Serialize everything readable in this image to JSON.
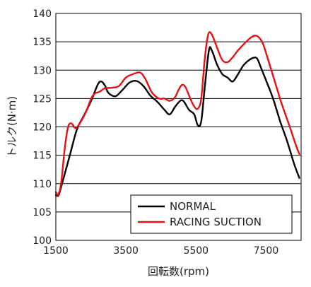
{
  "chart_data": {
    "type": "line",
    "title": "",
    "xlabel": "回転数(rpm)",
    "ylabel": "トルク(N·m)",
    "xlim": [
      1500,
      8500
    ],
    "ylim": [
      100,
      140
    ],
    "x_ticks": [
      1500,
      3500,
      5500,
      7500
    ],
    "y_ticks": [
      100,
      105,
      110,
      115,
      120,
      125,
      130,
      135,
      140
    ],
    "grid": "horizontal",
    "legend_position": "lower-right",
    "series": [
      {
        "name": "NORMAL",
        "color": "#000000",
        "points": [
          [
            1500,
            108
          ],
          [
            1580,
            108
          ],
          [
            1700,
            110.5
          ],
          [
            1900,
            115
          ],
          [
            2100,
            119.5
          ],
          [
            2300,
            122
          ],
          [
            2500,
            124.5
          ],
          [
            2700,
            127.5
          ],
          [
            2800,
            128
          ],
          [
            2900,
            127.3
          ],
          [
            3000,
            126
          ],
          [
            3200,
            125.4
          ],
          [
            3400,
            126.5
          ],
          [
            3600,
            127.8
          ],
          [
            3800,
            128.1
          ],
          [
            4000,
            127.2
          ],
          [
            4200,
            125.5
          ],
          [
            4400,
            124.4
          ],
          [
            4600,
            123
          ],
          [
            4750,
            122.2
          ],
          [
            4900,
            123.5
          ],
          [
            5050,
            124.6
          ],
          [
            5150,
            124.5
          ],
          [
            5300,
            123
          ],
          [
            5450,
            122.2
          ],
          [
            5550,
            120.3
          ],
          [
            5650,
            121
          ],
          [
            5750,
            127
          ],
          [
            5870,
            133.5
          ],
          [
            5950,
            133.5
          ],
          [
            6100,
            131
          ],
          [
            6250,
            129.3
          ],
          [
            6400,
            128.7
          ],
          [
            6550,
            128
          ],
          [
            6700,
            129.3
          ],
          [
            6850,
            130.8
          ],
          [
            7000,
            131.7
          ],
          [
            7150,
            132.2
          ],
          [
            7250,
            132
          ],
          [
            7350,
            130.5
          ],
          [
            7500,
            128.2
          ],
          [
            7700,
            125
          ],
          [
            7900,
            121
          ],
          [
            8100,
            117.5
          ],
          [
            8300,
            113.5
          ],
          [
            8450,
            111
          ]
        ]
      },
      {
        "name": "RACING SUCTION",
        "color": "#e81010",
        "points": [
          [
            1500,
            108.5
          ],
          [
            1560,
            108
          ],
          [
            1650,
            110
          ],
          [
            1750,
            116
          ],
          [
            1850,
            120
          ],
          [
            1950,
            120.6
          ],
          [
            2050,
            119.8
          ],
          [
            2150,
            120.3
          ],
          [
            2350,
            122.5
          ],
          [
            2550,
            125.5
          ],
          [
            2750,
            126.2
          ],
          [
            2900,
            126.8
          ],
          [
            3100,
            126.9
          ],
          [
            3300,
            127.2
          ],
          [
            3500,
            128.7
          ],
          [
            3700,
            129.3
          ],
          [
            3900,
            129.6
          ],
          [
            4050,
            128.5
          ],
          [
            4250,
            126
          ],
          [
            4450,
            125
          ],
          [
            4600,
            125
          ],
          [
            4750,
            124.6
          ],
          [
            4900,
            125.2
          ],
          [
            5000,
            126.5
          ],
          [
            5100,
            127.4
          ],
          [
            5200,
            127
          ],
          [
            5350,
            124.8
          ],
          [
            5450,
            123.6
          ],
          [
            5550,
            123.2
          ],
          [
            5650,
            125
          ],
          [
            5750,
            132
          ],
          [
            5850,
            136.3
          ],
          [
            5950,
            136.3
          ],
          [
            6100,
            134
          ],
          [
            6250,
            131.8
          ],
          [
            6400,
            131.4
          ],
          [
            6550,
            132.3
          ],
          [
            6700,
            133.5
          ],
          [
            6900,
            134.8
          ],
          [
            7100,
            135.9
          ],
          [
            7250,
            136
          ],
          [
            7400,
            134.8
          ],
          [
            7550,
            132
          ],
          [
            7750,
            128
          ],
          [
            7950,
            124
          ],
          [
            8150,
            120.5
          ],
          [
            8350,
            116.8
          ],
          [
            8450,
            115.2
          ]
        ]
      }
    ]
  }
}
